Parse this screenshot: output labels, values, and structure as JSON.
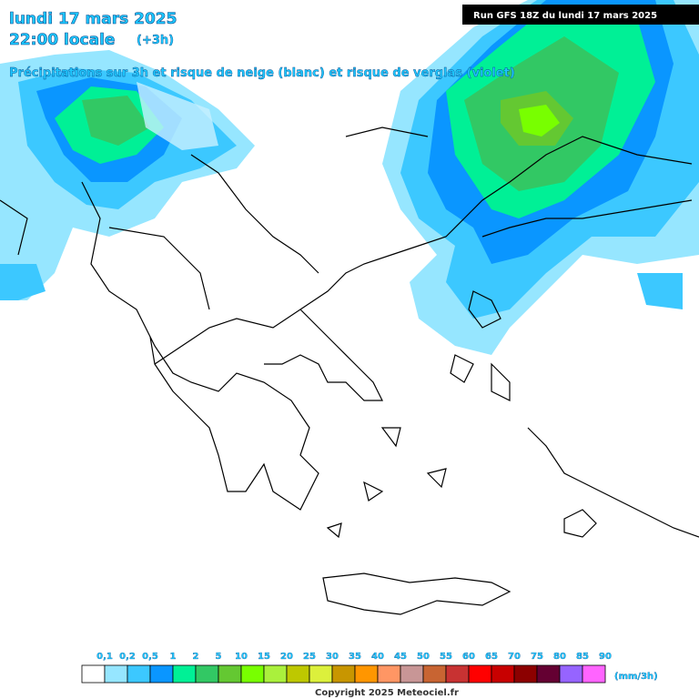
{
  "header": {
    "date": "lundi 17 mars 2025",
    "time": "22:00 locale",
    "offset": "(+3h)",
    "subtitle": "Précipitations sur 3h et risque de neige (blanc) et risque de verglas (violet)",
    "run": "Run GFS 18Z du lundi 17 mars 2025"
  },
  "legend": {
    "labels": [
      "0,1",
      "0,2",
      "0,5",
      "1",
      "2",
      "5",
      "10",
      "15",
      "20",
      "25",
      "30",
      "35",
      "40",
      "45",
      "50",
      "55",
      "60",
      "65",
      "70",
      "75",
      "80",
      "85",
      "90"
    ],
    "colors": [
      "#ffffff",
      "#96e6ff",
      "#3cc8ff",
      "#0a96ff",
      "#00f096",
      "#32c864",
      "#64c832",
      "#78ff00",
      "#aaf03c",
      "#bec800",
      "#dcf03c",
      "#c89600",
      "#ff9600",
      "#ff9664",
      "#c89696",
      "#c86432",
      "#c83232",
      "#ff0000",
      "#c80000",
      "#8c0000",
      "#640032",
      "#9664ff",
      "#ff64ff"
    ],
    "unit": "(mm/3h)"
  },
  "footer": {
    "copyright": "Copyright 2025 Meteociel.fr"
  }
}
